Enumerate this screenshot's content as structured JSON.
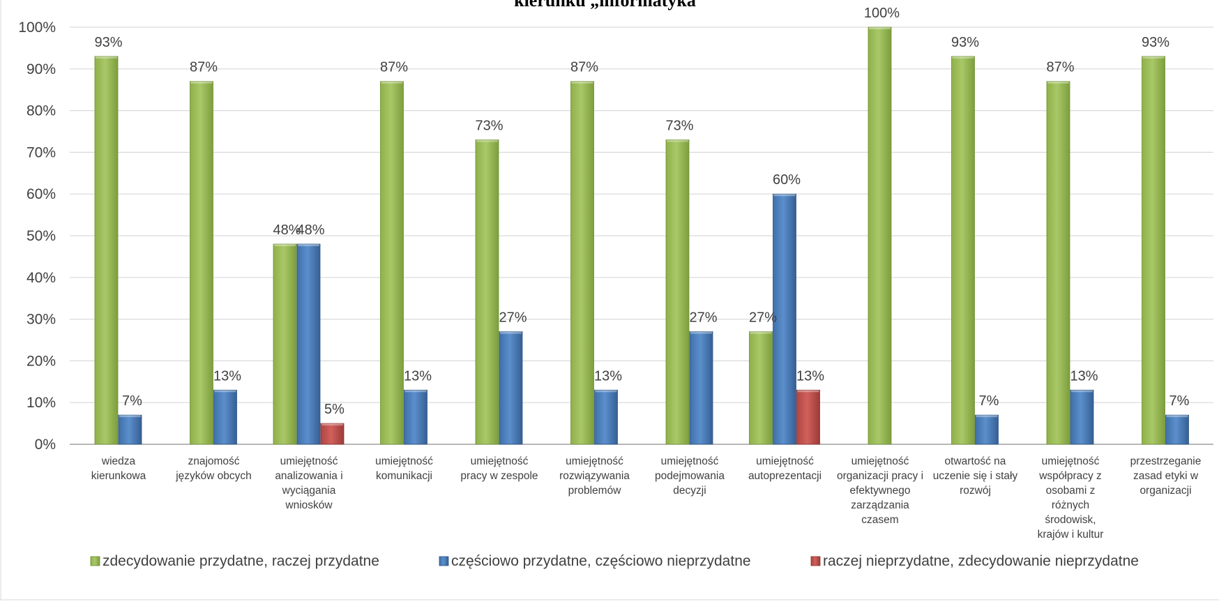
{
  "chart_data": {
    "type": "bar",
    "title": "kierunku „informatyka”",
    "xlabel": "",
    "ylabel": "",
    "ylim": [
      0,
      100
    ],
    "y_ticks": [
      "0%",
      "10%",
      "20%",
      "30%",
      "40%",
      "50%",
      "60%",
      "70%",
      "80%",
      "90%",
      "100%"
    ],
    "grid": true,
    "legend_position": "bottom",
    "categories": [
      "wiedza kierunkowa",
      "znajomość języków obcych",
      "umiejętność analizowania i wyciągania wniosków",
      "umiejętność komunikacji",
      "umiejętność pracy w zespole",
      "umiejętność rozwiązywania problemów",
      "umiejętność podejmowania decyzji",
      "umiejętność autoprezentacji",
      "umiejętność organizacji pracy i efektywnego zarządzania czasem",
      "otwartość na uczenie się i stały rozwój",
      "umiejętność współpracy z osobami z różnych środowisk, krajów i kultur",
      "przestrzeganie zasad etyki w organizacji"
    ],
    "category_lines": [
      [
        "wiedza",
        "kierunkowa"
      ],
      [
        "znajomość",
        "języków obcych"
      ],
      [
        "umiejętność",
        "analizowania i",
        "wyciągania",
        "wniosków"
      ],
      [
        "umiejętność",
        "komunikacji"
      ],
      [
        "umiejętność",
        "pracy w zespole"
      ],
      [
        "umiejętność",
        "rozwiązywania",
        "problemów"
      ],
      [
        "umiejętność",
        "podejmowania",
        "decyzji"
      ],
      [
        "umiejętność",
        "autoprezentacji"
      ],
      [
        "umiejętność",
        "organizacji pracy i",
        "efektywnego",
        "zarządzania",
        "czasem"
      ],
      [
        "otwartość na",
        "uczenie się i stały",
        "rozwój"
      ],
      [
        "umiejętność",
        "współpracy z",
        "osobami z",
        "różnych",
        "środowisk,",
        "krajów i kultur"
      ],
      [
        "przestrzeganie",
        "zasad etyki w",
        "organizacji"
      ]
    ],
    "series": [
      {
        "name": "zdecydowanie przydatne, raczej przydatne",
        "color": "#9BBB59",
        "values": [
          93,
          87,
          48,
          87,
          73,
          87,
          73,
          27,
          100,
          93,
          87,
          93
        ]
      },
      {
        "name": "częściowo przydatne, częściowo nieprzydatne",
        "color": "#4F81BD",
        "values": [
          7,
          13,
          48,
          13,
          27,
          13,
          27,
          60,
          null,
          7,
          13,
          7
        ]
      },
      {
        "name": "raczej nieprzydatne, zdecydowanie nieprzydatne",
        "color": "#C0504D",
        "values": [
          null,
          null,
          5,
          null,
          null,
          null,
          null,
          13,
          null,
          null,
          null,
          null
        ]
      }
    ]
  }
}
